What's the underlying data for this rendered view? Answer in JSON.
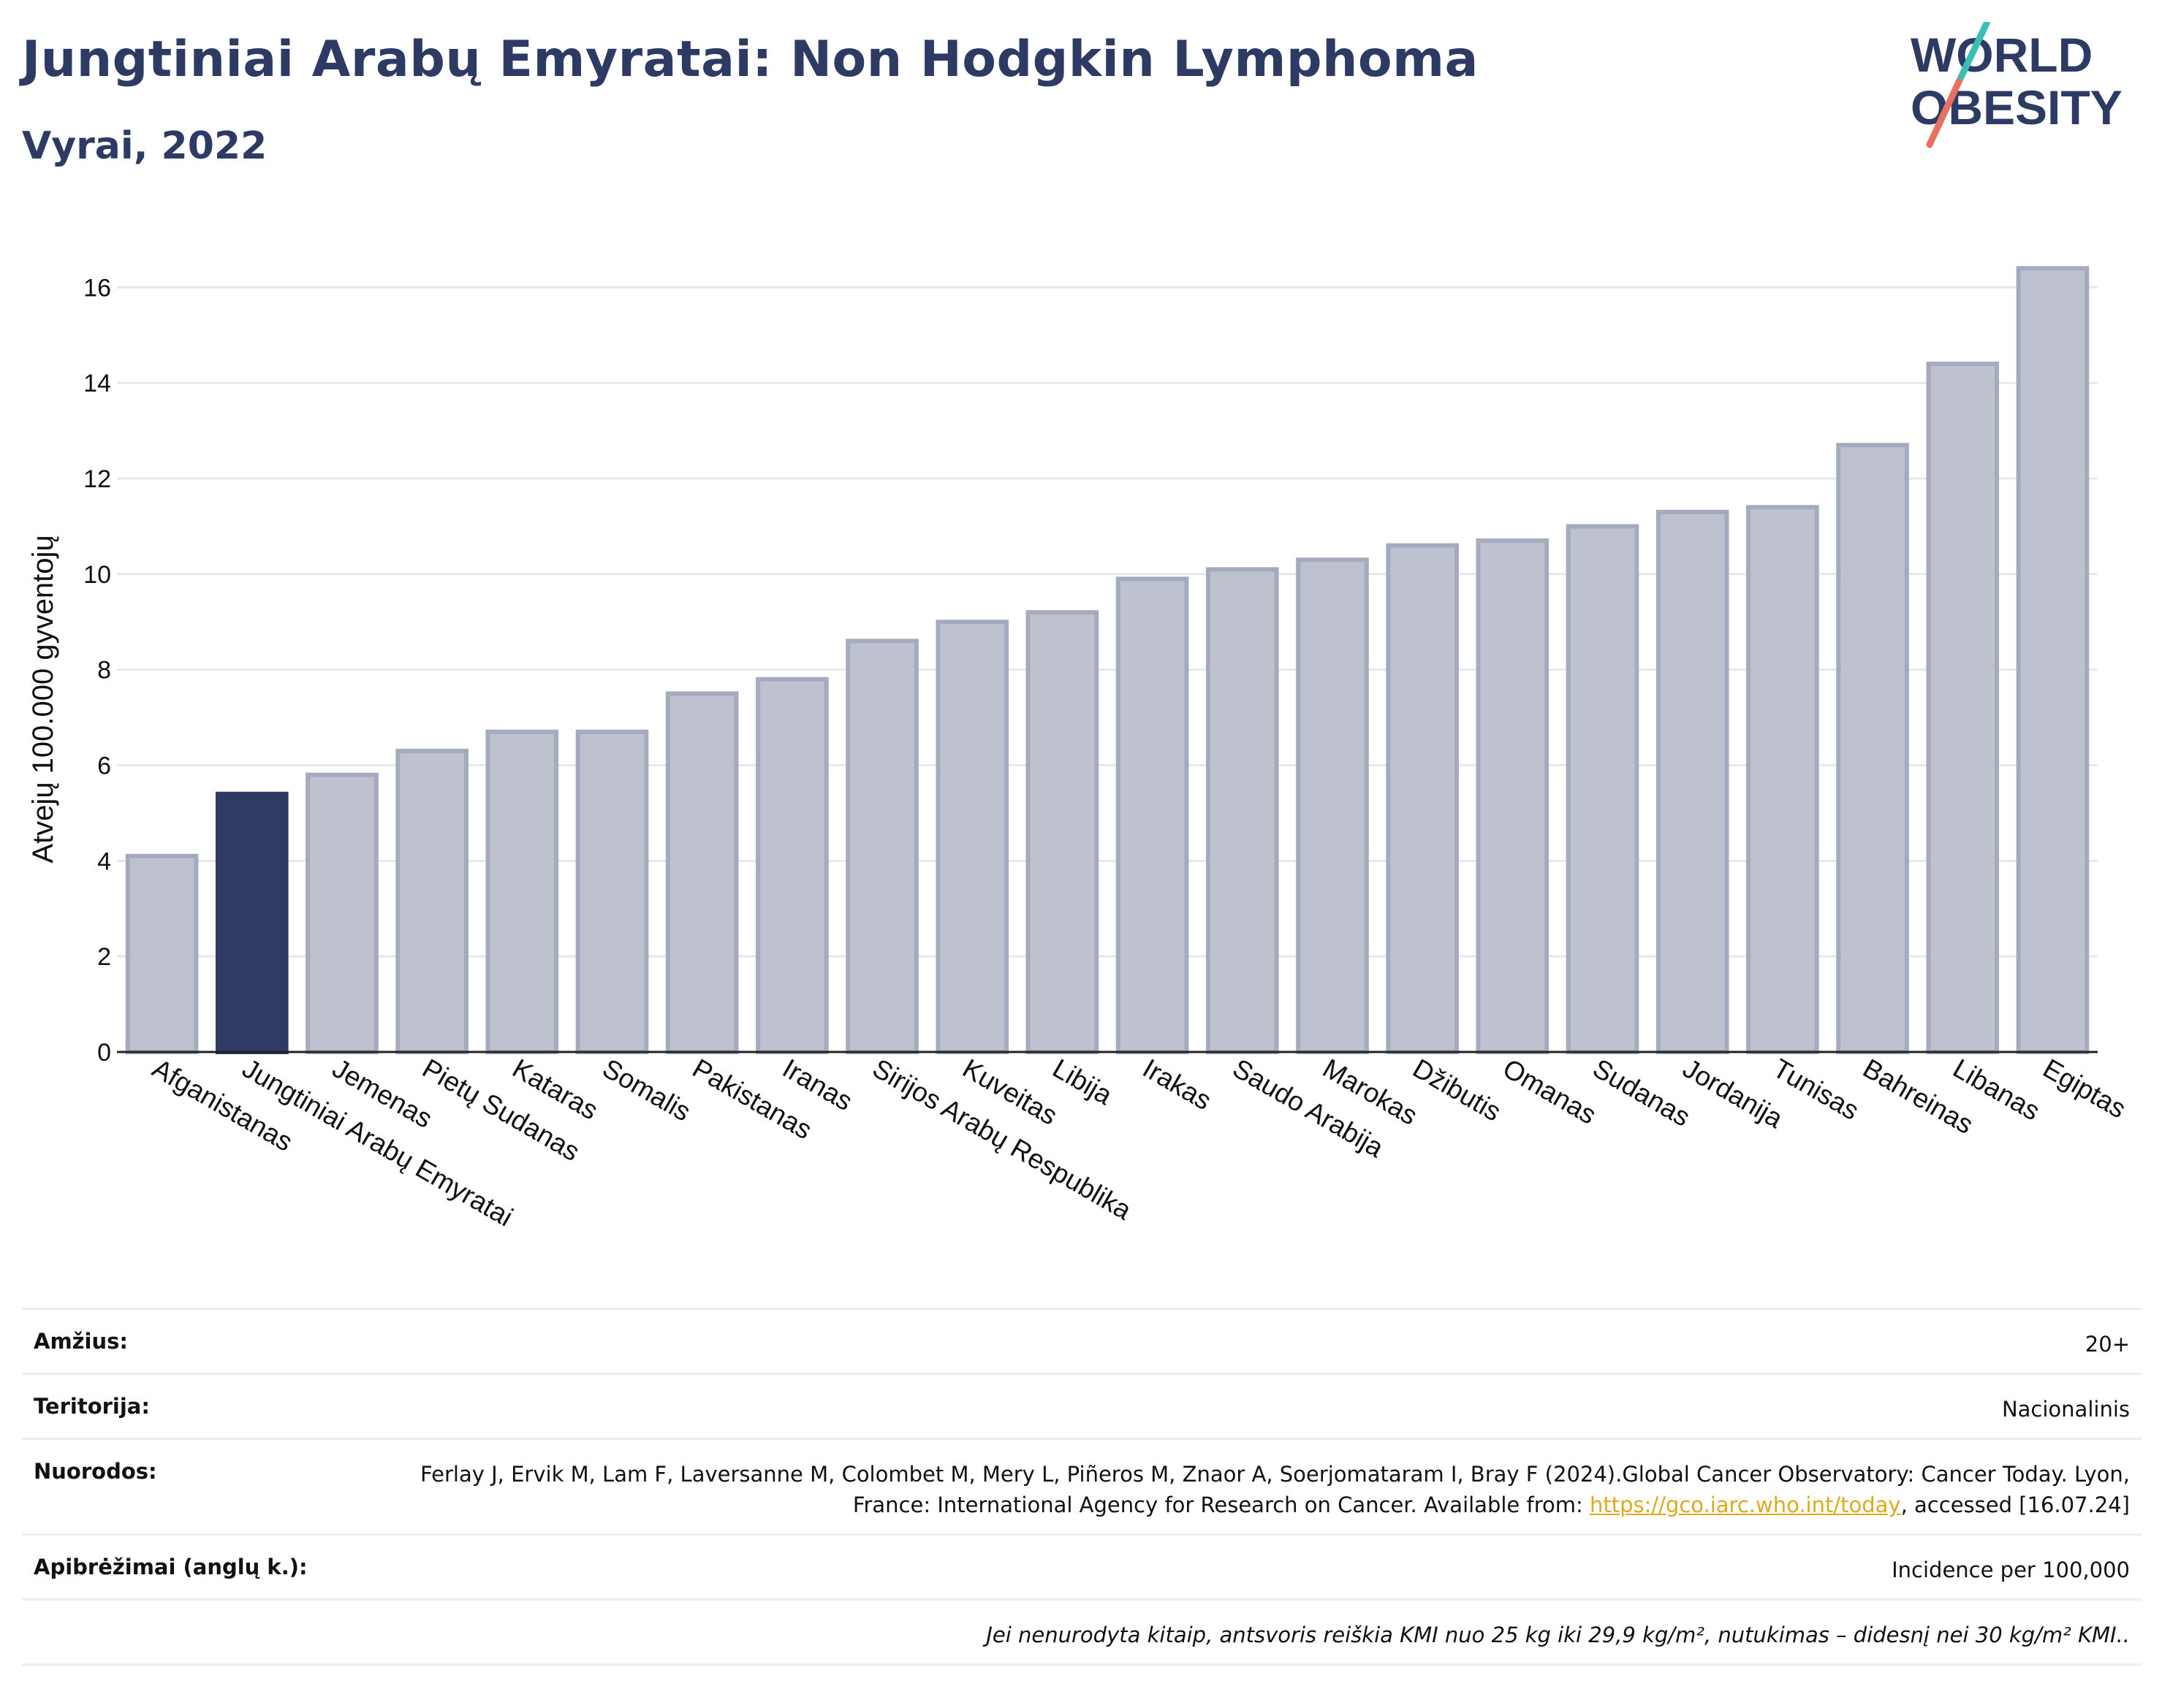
{
  "header": {
    "title": "Jungtiniai Arabų Emyratai: Non Hodgkin Lymphoma",
    "subtitle": "Vyrai, 2022"
  },
  "logo": {
    "line1": "WORLD",
    "line2": "OBESITY"
  },
  "colors": {
    "highlight_bar": "#2d3a63",
    "default_bar_fill": "#bec2ce",
    "default_bar_stroke": "#a4abbf",
    "title": "#2d3a63",
    "link": "#e0a91c"
  },
  "chart_data": {
    "type": "bar",
    "ylabel": "Atvejų 100.000 gyventojų",
    "xlabel": "",
    "ylim": [
      0,
      17
    ],
    "yticks": [
      0,
      2,
      4,
      6,
      8,
      10,
      12,
      14,
      16
    ],
    "grid": true,
    "highlight": "Jungtiniai Arabų Emyratai",
    "categories": [
      "Afganistanas",
      "Jungtiniai Arabų Emyratai",
      "Jemenas",
      "Pietų Sudanas",
      "Kataras",
      "Somalis",
      "Pakistanas",
      "Iranas",
      "Sirijos Arabų Respublika",
      "Kuveitas",
      "Libija",
      "Irakas",
      "Saudo Arabija",
      "Marokas",
      "Džibutis",
      "Omanas",
      "Sudanas",
      "Jordanija",
      "Tunisas",
      "Bahreinas",
      "Libanas",
      "Egiptas"
    ],
    "values": [
      4.1,
      5.4,
      5.8,
      6.3,
      6.7,
      6.7,
      7.5,
      7.8,
      8.6,
      9.0,
      9.2,
      9.9,
      10.1,
      10.3,
      10.6,
      10.7,
      11.0,
      11.3,
      11.4,
      12.7,
      14.4,
      16.4
    ]
  },
  "info": {
    "age_label": "Amžius:",
    "age_value": "20+",
    "territory_label": "Teritorija:",
    "territory_value": "Nacionalinis",
    "references_label": "Nuorodos:",
    "references_text_1": "Ferlay J, Ervik M, Lam F, Laversanne M, Colombet M, Mery L, Piñeros M, Znaor A, Soerjomataram I, Bray F (2024).Global Cancer Observatory: Cancer Today. Lyon, France: International Agency for Research on Cancer. Available from: ",
    "references_link": "https://gco.iarc.who.int/today",
    "references_text_2": ", accessed [16.07.24]",
    "definitions_label": "Apibrėžimai (anglų k.):",
    "definitions_value": "Incidence per 100,000",
    "note": "Jei nenurodyta kitaip, antsvoris reiškia KMI nuo 25 kg iki 29,9 kg/m², nutukimas – didesnį nei 30 kg/m² KMI.."
  }
}
